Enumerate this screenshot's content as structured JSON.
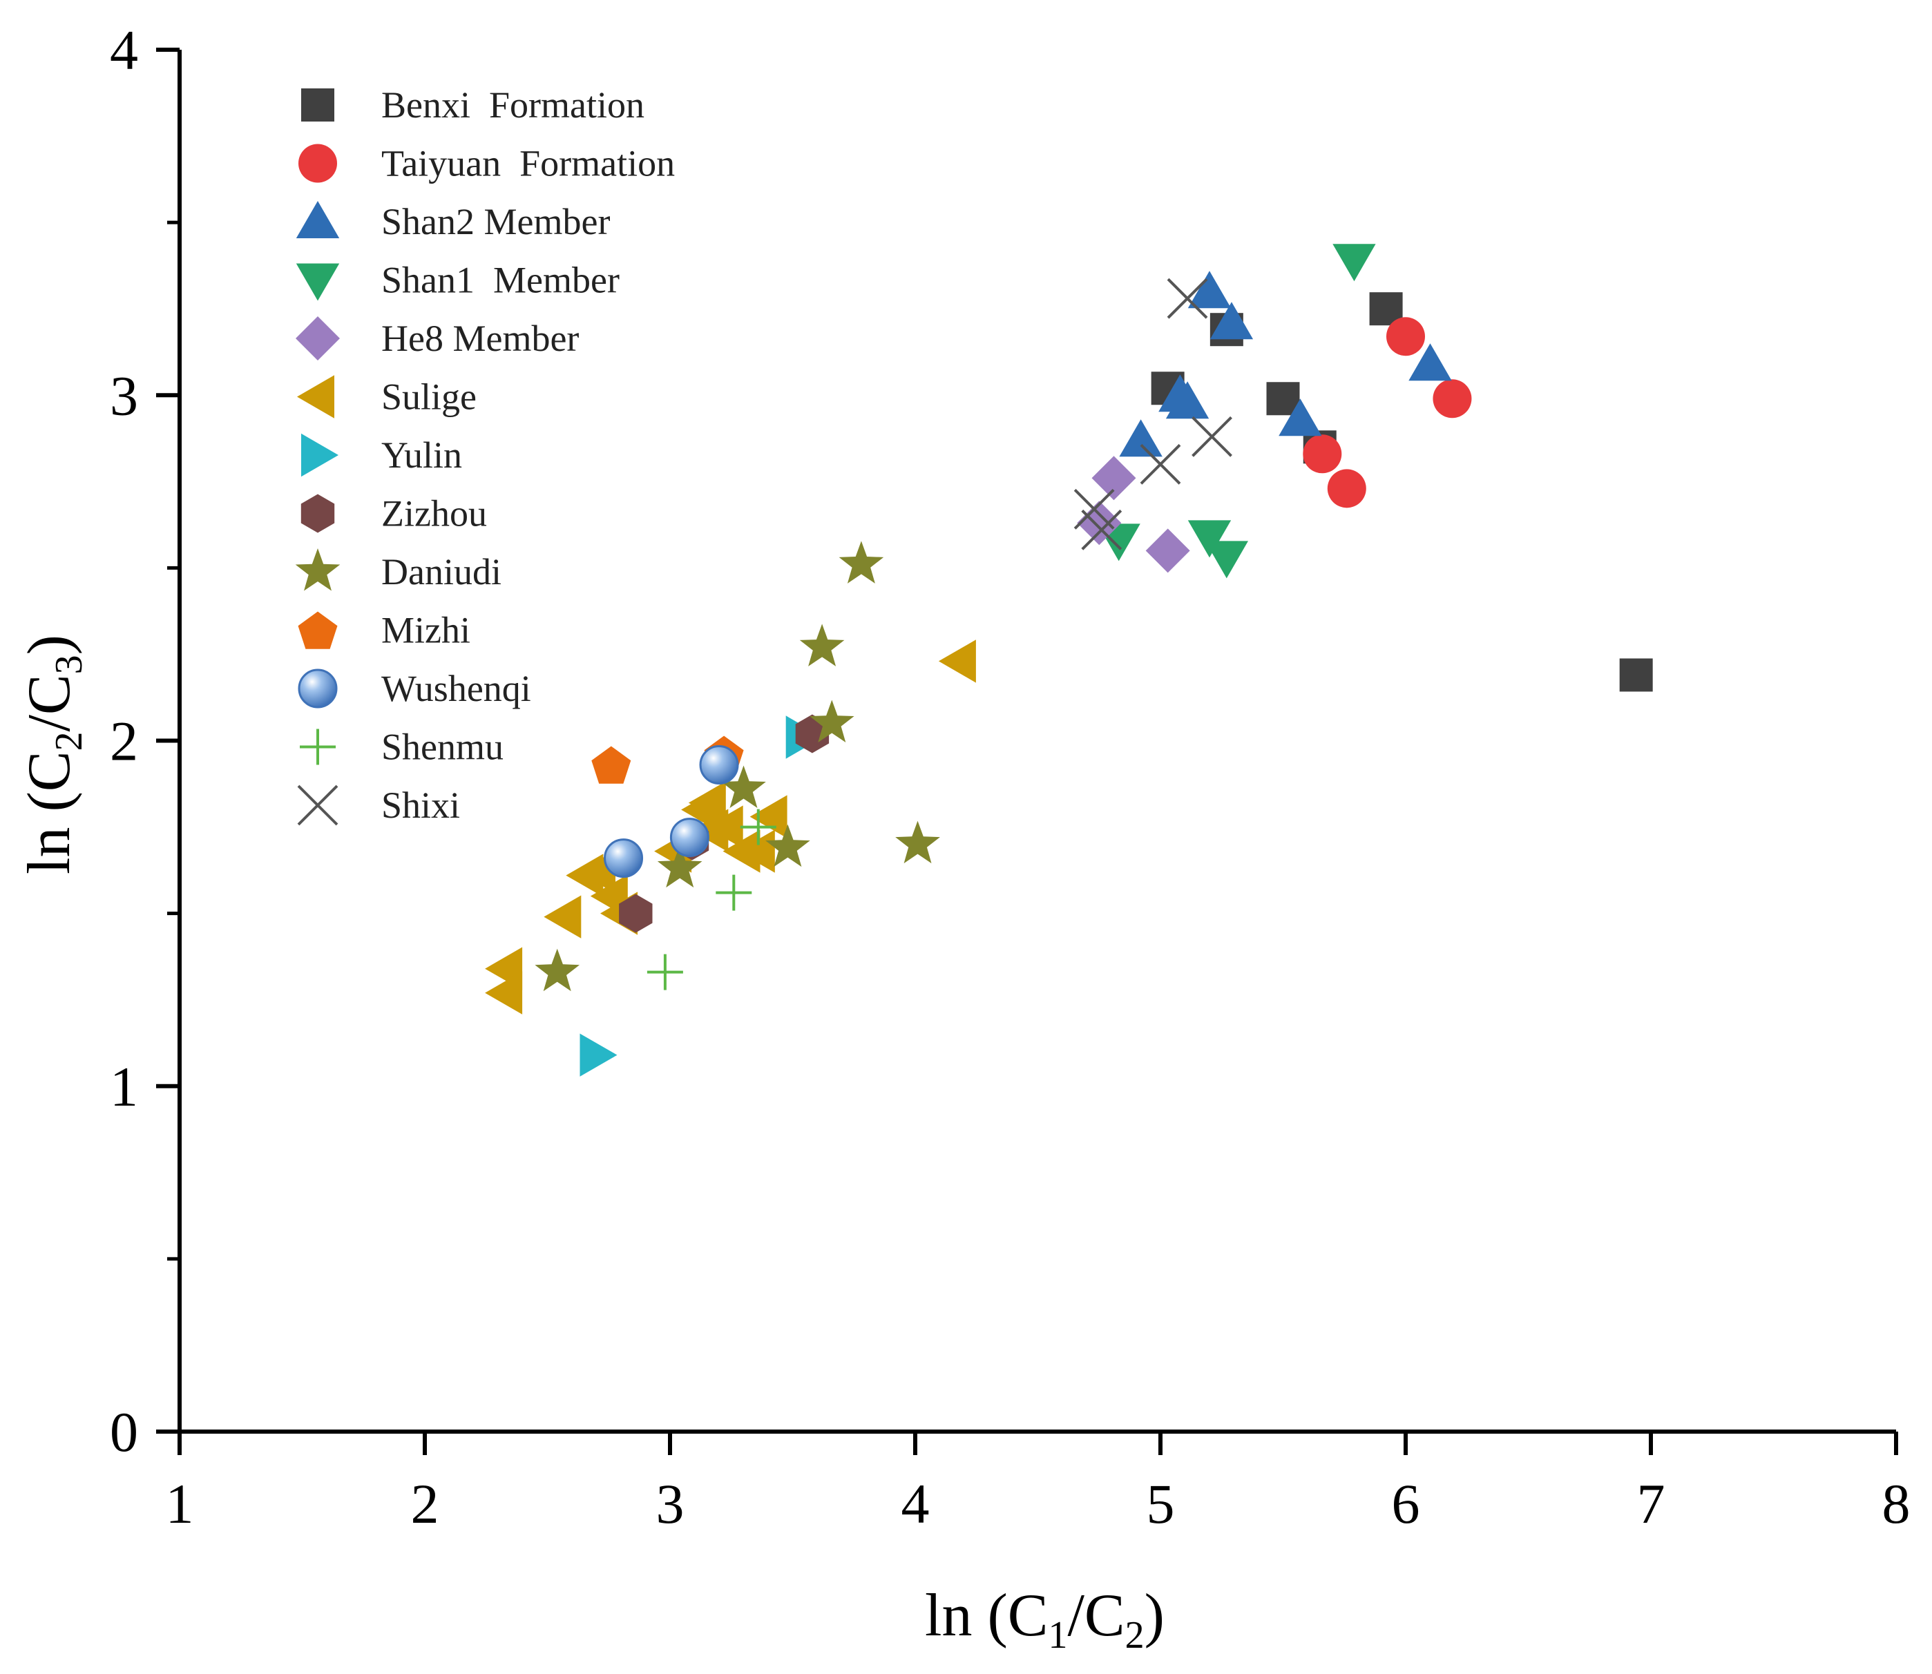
{
  "chart_data": {
    "type": "scatter",
    "title": "",
    "xlabel": "ln (C1/C2)",
    "ylabel": "ln (C2/C3)",
    "xlabel_parts": {
      "pre": "ln (C",
      "sub1": "1",
      "mid": "/C",
      "sub2": "2",
      "post": ")"
    },
    "ylabel_parts": {
      "pre": "ln (C",
      "sub1": "2",
      "mid": "/C",
      "sub2": "3",
      "post": ")"
    },
    "xlim": [
      1,
      8
    ],
    "ylim": [
      0,
      4
    ],
    "x_ticks": [
      1,
      2,
      3,
      4,
      5,
      6,
      7,
      8
    ],
    "x_tick_labels": [
      "1",
      "2",
      "3",
      "4",
      "5",
      "6",
      "7",
      "8"
    ],
    "y_ticks": [
      0,
      1,
      2,
      3,
      4
    ],
    "y_tick_labels": [
      "0",
      "1",
      "2",
      "3",
      "4"
    ],
    "y_minor_ticks": [
      0.5,
      1.5,
      2.5,
      3.5
    ],
    "grid": false,
    "legend_position": "top-left",
    "series": [
      {
        "name": "Benxi  Formation",
        "marker": "square",
        "color": "#404040",
        "points": [
          [
            5.03,
            3.02
          ],
          [
            5.5,
            2.99
          ],
          [
            5.65,
            2.85
          ],
          [
            5.92,
            3.25
          ],
          [
            5.27,
            3.19
          ],
          [
            6.94,
            2.19
          ]
        ]
      },
      {
        "name": "Taiyuan  Formation",
        "marker": "circle",
        "color": "#e8393b",
        "points": [
          [
            6.0,
            3.17
          ],
          [
            6.19,
            2.99
          ],
          [
            5.66,
            2.83
          ],
          [
            5.76,
            2.73
          ]
        ]
      },
      {
        "name": "Shan2 Member",
        "marker": "triangle-up",
        "color": "#2e6db4",
        "points": [
          [
            5.2,
            3.3
          ],
          [
            5.29,
            3.21
          ],
          [
            5.08,
            3.0
          ],
          [
            5.11,
            2.98
          ],
          [
            4.92,
            2.87
          ],
          [
            5.57,
            2.93
          ],
          [
            6.1,
            3.09
          ]
        ]
      },
      {
        "name": "Shan1  Member",
        "marker": "triangle-down",
        "color": "#26a567",
        "points": [
          [
            5.79,
            3.39
          ],
          [
            4.83,
            2.58
          ],
          [
            5.2,
            2.59
          ],
          [
            5.27,
            2.53
          ]
        ]
      },
      {
        "name": "He8 Member",
        "marker": "diamond",
        "color": "#9b7dc0",
        "points": [
          [
            4.81,
            2.76
          ],
          [
            4.75,
            2.63
          ],
          [
            5.03,
            2.55
          ]
        ]
      },
      {
        "name": "Sulige",
        "marker": "triangle-left",
        "color": "#cc9a06",
        "points": [
          [
            2.33,
            1.34
          ],
          [
            2.33,
            1.27
          ],
          [
            2.57,
            1.49
          ],
          [
            2.66,
            1.61
          ],
          [
            2.71,
            1.62
          ],
          [
            2.76,
            1.55
          ],
          [
            2.8,
            1.5
          ],
          [
            3.02,
            1.68
          ],
          [
            3.13,
            1.8
          ],
          [
            3.16,
            1.82
          ],
          [
            3.17,
            1.74
          ],
          [
            3.23,
            1.75
          ],
          [
            3.3,
            1.68
          ],
          [
            3.36,
            1.68
          ],
          [
            3.41,
            1.78
          ],
          [
            4.18,
            2.23
          ]
        ]
      },
      {
        "name": "Yulin",
        "marker": "triangle-right",
        "color": "#26b6c7",
        "points": [
          [
            2.7,
            1.09
          ],
          [
            3.54,
            2.01
          ]
        ]
      },
      {
        "name": "Zizhou",
        "marker": "hexagon",
        "color": "#764646",
        "points": [
          [
            2.86,
            1.5
          ],
          [
            3.09,
            1.71
          ],
          [
            3.58,
            2.02
          ]
        ]
      },
      {
        "name": "Daniudi",
        "marker": "star",
        "color": "#80852c",
        "points": [
          [
            2.54,
            1.33
          ],
          [
            3.04,
            1.63
          ],
          [
            3.3,
            1.86
          ],
          [
            3.48,
            1.69
          ],
          [
            3.62,
            2.27
          ],
          [
            3.66,
            2.05
          ],
          [
            3.78,
            2.51
          ],
          [
            4.01,
            1.7
          ]
        ]
      },
      {
        "name": "Mizhi",
        "marker": "pentagon",
        "color": "#ea6b10",
        "points": [
          [
            2.76,
            1.93
          ],
          [
            3.22,
            1.96
          ]
        ]
      },
      {
        "name": "Wushenqi",
        "marker": "sphere",
        "color": "#5b8fd0",
        "points": [
          [
            2.81,
            1.66
          ],
          [
            3.08,
            1.72
          ],
          [
            3.2,
            1.93
          ]
        ]
      },
      {
        "name": "Shenmu",
        "marker": "plus",
        "color": "#5cb846",
        "points": [
          [
            2.98,
            1.33
          ],
          [
            3.26,
            1.56
          ],
          [
            3.36,
            1.75
          ]
        ]
      },
      {
        "name": "Shixi",
        "marker": "x",
        "color": "#555555",
        "points": [
          [
            5.11,
            3.28
          ],
          [
            4.73,
            2.67
          ],
          [
            4.76,
            2.61
          ],
          [
            5.0,
            2.8
          ],
          [
            5.21,
            2.88
          ]
        ]
      }
    ]
  }
}
